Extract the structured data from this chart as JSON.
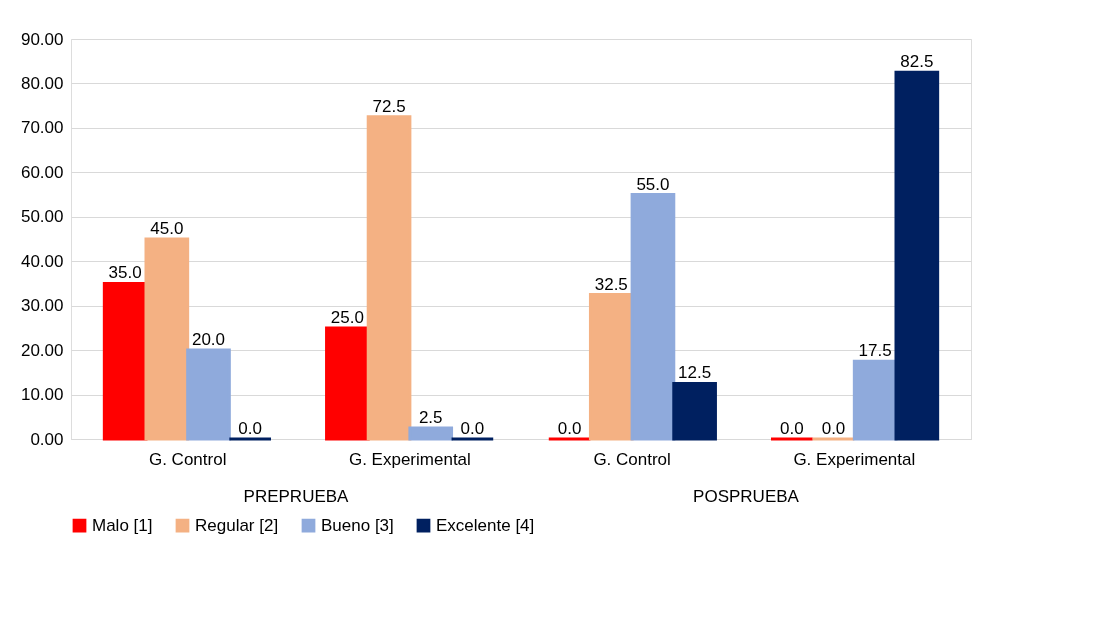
{
  "chart_data": {
    "type": "bar",
    "categories": [
      "G. Control",
      "G. Experimental",
      "G. Control",
      "G. Experimental"
    ],
    "series": [
      {
        "name": "Malo [1]",
        "color": "#ff0000",
        "values": [
          35.0,
          25.0,
          0.0,
          0.0
        ],
        "value_labels": [
          "35.0",
          "25.0",
          "0.0",
          "0.0"
        ]
      },
      {
        "name": "Regular [2]",
        "color": "#f4b183",
        "values": [
          45.0,
          72.5,
          32.5,
          0.0
        ],
        "value_labels": [
          "45.0",
          "72.5",
          "32.5",
          "0.0"
        ]
      },
      {
        "name": "Bueno [3]",
        "color": "#8faadc",
        "values": [
          20.0,
          2.5,
          55.0,
          17.5
        ],
        "value_labels": [
          "20.0",
          "2.5",
          "55.0",
          "17.5"
        ]
      },
      {
        "name": "Excelente [4]",
        "color": "#002060",
        "values": [
          0.0,
          0.0,
          12.5,
          82.5
        ],
        "value_labels": [
          "0.0",
          "0.0",
          "12.5",
          "82.5"
        ]
      }
    ],
    "ylim": [
      0,
      90
    ],
    "yticks": [
      {
        "value": 0,
        "label": "0.00"
      },
      {
        "value": 10,
        "label": "10.00"
      },
      {
        "value": 20,
        "label": "20.00"
      },
      {
        "value": 30,
        "label": "30.00"
      },
      {
        "value": 40,
        "label": "40.00"
      },
      {
        "value": 50,
        "label": "50.00"
      },
      {
        "value": 60,
        "label": "60.00"
      },
      {
        "value": 70,
        "label": "70.00"
      },
      {
        "value": 80,
        "label": "80.00"
      },
      {
        "value": 90,
        "label": "90.00"
      }
    ],
    "grid": "y",
    "legend": "bottom",
    "annotations": [
      "PREPRUEBA",
      "POSPRUEBA"
    ]
  }
}
